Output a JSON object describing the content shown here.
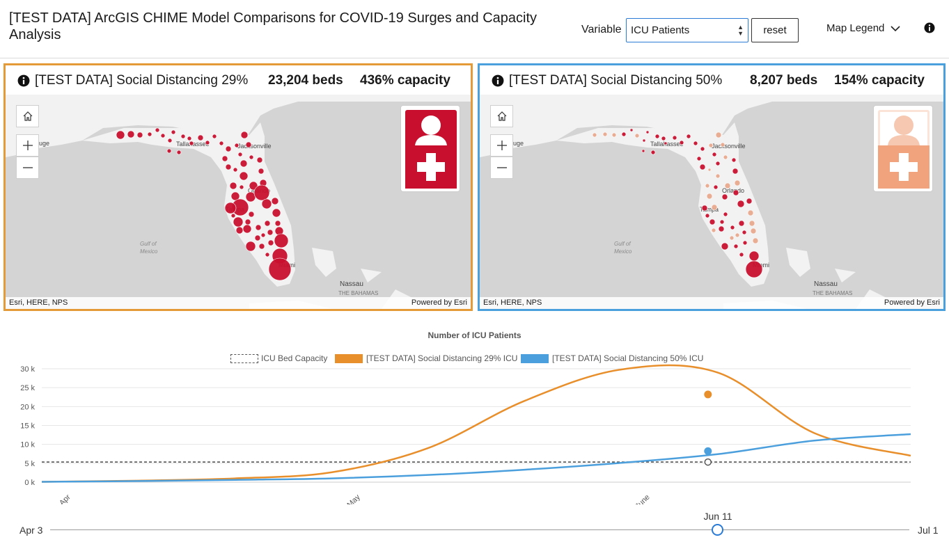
{
  "header": {
    "title": "[TEST DATA] ArcGIS CHIME Model Comparisons for COVID-19 Surges and Capacity Analysis",
    "variable_label": "Variable",
    "variable_value": "ICU Patients",
    "reset_label": "reset",
    "map_legend_label": "Map Legend"
  },
  "panels": [
    {
      "scenario": "[TEST DATA] Social Distancing 29%",
      "beds": "23,204 beds",
      "capacity": "436% capacity",
      "attribution": "Esri, HERE, NPS",
      "powered": "Powered by Esri",
      "accent": "#e39a37"
    },
    {
      "scenario": "[TEST DATA] Social Distancing 50%",
      "beds": "8,207 beds",
      "capacity": "154% capacity",
      "attribution": "Esri, HERE, NPS",
      "powered": "Powered by Esri",
      "accent": "#4aa0dd"
    }
  ],
  "map_labels": {
    "baton_rouge": "ouge",
    "tallahassee": "Tallahassee",
    "jacksonville": "Jacksonville",
    "orlando": "Orlando",
    "tampa": "Tampa",
    "miami": "Miami",
    "gulf": "Gulf of",
    "mexico": "Mexico",
    "nassau": "Nassau",
    "bahamas": "THE BAHAMAS"
  },
  "chart_data": {
    "type": "line",
    "title": "Number of ICU Patients",
    "legend": [
      "ICU Bed Capacity",
      "[TEST DATA] Social Distancing 29% ICU",
      "[TEST DATA] Social Distancing 50% ICU"
    ],
    "y_ticks": [
      "30 k",
      "25 k",
      "20 k",
      "15 k",
      "10 k",
      "5 k",
      "0 k"
    ],
    "x_ticks": [
      "Apr",
      "May",
      "June"
    ],
    "ylim": [
      0,
      30000
    ],
    "x_days": [
      0,
      10,
      20,
      30,
      40,
      50,
      60,
      70,
      80,
      90
    ],
    "series": [
      {
        "name": "ICU Bed Capacity",
        "color": "#555555",
        "dashed": true,
        "values": [
          5320,
          5320,
          5320,
          5320,
          5320,
          5320,
          5320,
          5320,
          5320,
          5320
        ]
      },
      {
        "name": "[TEST DATA] Social Distancing 29% ICU",
        "color": "#e88f2c",
        "values": [
          100,
          400,
          1000,
          2600,
          9000,
          21500,
          29800,
          29000,
          13000,
          7000
        ]
      },
      {
        "name": "[TEST DATA] Social Distancing 50% ICU",
        "color": "#4b9fdc",
        "values": [
          100,
          300,
          600,
          1000,
          1900,
          3300,
          5100,
          7400,
          11000,
          12700
        ]
      }
    ],
    "highlight_day": 69,
    "highlight_values": [
      5320,
      23204,
      8207
    ]
  },
  "slider": {
    "start": "Apr 3",
    "end": "Jul 1",
    "value": "Jun 11"
  },
  "colors": {
    "dot_dark": "#c8102e",
    "dot_light": "#e8a98e",
    "land": "#f2f2f2",
    "water": "#d4d4d4"
  }
}
